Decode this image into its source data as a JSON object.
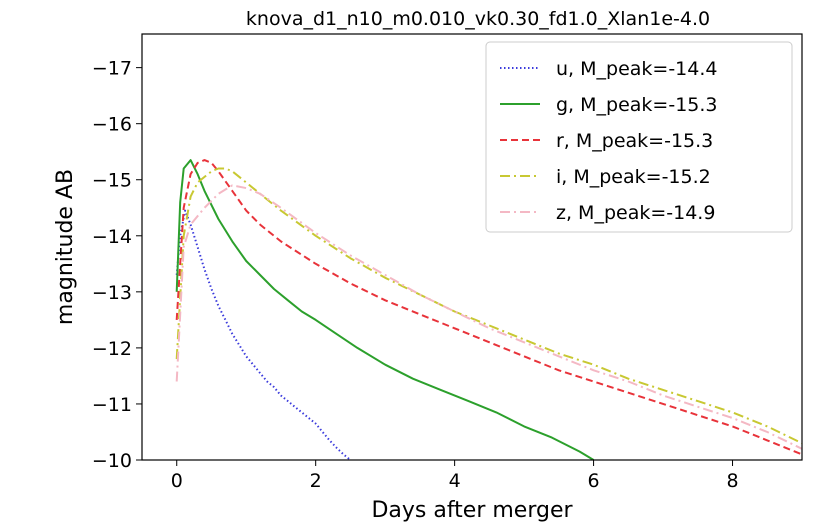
{
  "chart_data": {
    "type": "line",
    "title": "knova_d1_n10_m0.010_vk0.30_fd1.0_Xlan1e-4.0",
    "xlabel": "Days after merger",
    "ylabel": "magnitude AB",
    "xlim": [
      -0.5,
      9
    ],
    "ylim": [
      -10,
      -17.6
    ],
    "y_inverted": true,
    "x_ticks": [
      0,
      2,
      4,
      6,
      8
    ],
    "x_tick_labels": [
      "0",
      "2",
      "4",
      "6",
      "8"
    ],
    "y_ticks": [
      -17,
      -16,
      -15,
      -14,
      -13,
      -12,
      -11,
      -10
    ],
    "y_tick_labels": [
      "−17",
      "−16",
      "−15",
      "−14",
      "−13",
      "−12",
      "−11",
      "−10"
    ],
    "grid": false,
    "legend_position": "top-right",
    "series": [
      {
        "name": "u, M_peak=-14.4",
        "color": "#3b3bdc",
        "style": "dotted",
        "x": [
          0,
          0.05,
          0.12,
          0.2,
          0.3,
          0.4,
          0.5,
          0.6,
          0.7,
          0.8,
          0.9,
          1.0,
          1.1,
          1.2,
          1.3,
          1.4,
          1.5,
          1.6,
          1.7,
          1.8,
          1.9,
          2.0,
          2.1,
          2.2,
          2.3,
          2.4,
          2.5
        ],
        "y": [
          -13.3,
          -14.0,
          -14.45,
          -14.2,
          -13.8,
          -13.4,
          -13.05,
          -12.75,
          -12.5,
          -12.25,
          -12.05,
          -11.85,
          -11.7,
          -11.55,
          -11.4,
          -11.3,
          -11.15,
          -11.05,
          -10.95,
          -10.85,
          -10.75,
          -10.65,
          -10.5,
          -10.35,
          -10.22,
          -10.1,
          -10.0
        ]
      },
      {
        "name": "g, M_peak=-15.3",
        "color": "#2ca02c",
        "style": "solid",
        "x": [
          0,
          0.05,
          0.1,
          0.2,
          0.3,
          0.4,
          0.6,
          0.8,
          1.0,
          1.2,
          1.4,
          1.6,
          1.8,
          2.0,
          2.3,
          2.6,
          3.0,
          3.4,
          3.8,
          4.2,
          4.6,
          5.0,
          5.4,
          5.8,
          6.0
        ],
        "y": [
          -13.0,
          -14.6,
          -15.2,
          -15.35,
          -15.1,
          -14.8,
          -14.3,
          -13.9,
          -13.55,
          -13.3,
          -13.05,
          -12.85,
          -12.65,
          -12.5,
          -12.25,
          -12.0,
          -11.7,
          -11.45,
          -11.25,
          -11.05,
          -10.85,
          -10.6,
          -10.4,
          -10.15,
          -10.0
        ]
      },
      {
        "name": "r, M_peak=-15.3",
        "color": "#e8333a",
        "style": "dashed",
        "x": [
          0,
          0.1,
          0.2,
          0.3,
          0.4,
          0.5,
          0.6,
          0.8,
          1.0,
          1.2,
          1.5,
          2.0,
          2.5,
          3.0,
          3.5,
          4.0,
          4.5,
          5.0,
          5.5,
          6.0,
          6.5,
          7.0,
          7.5,
          8.0,
          8.5,
          9.0
        ],
        "y": [
          -12.5,
          -14.5,
          -15.1,
          -15.3,
          -15.35,
          -15.3,
          -15.15,
          -14.8,
          -14.45,
          -14.2,
          -13.9,
          -13.5,
          -13.15,
          -12.85,
          -12.6,
          -12.35,
          -12.1,
          -11.85,
          -11.6,
          -11.4,
          -11.2,
          -11.0,
          -10.8,
          -10.6,
          -10.35,
          -10.1
        ]
      },
      {
        "name": "i, M_peak=-15.2",
        "color": "#c8c832",
        "style": "dashdot",
        "x": [
          0,
          0.1,
          0.2,
          0.3,
          0.4,
          0.5,
          0.6,
          0.7,
          0.8,
          1.0,
          1.2,
          1.5,
          2.0,
          2.5,
          3.0,
          3.5,
          4.0,
          4.5,
          5.0,
          5.5,
          6.0,
          6.5,
          7.0,
          7.5,
          8.0,
          8.5,
          9.0
        ],
        "y": [
          -11.8,
          -14.0,
          -14.7,
          -14.95,
          -15.05,
          -15.15,
          -15.2,
          -15.2,
          -15.15,
          -14.95,
          -14.75,
          -14.45,
          -14.0,
          -13.6,
          -13.25,
          -12.95,
          -12.65,
          -12.4,
          -12.15,
          -11.9,
          -11.7,
          -11.45,
          -11.25,
          -11.05,
          -10.85,
          -10.6,
          -10.3
        ]
      },
      {
        "name": "z, M_peak=-14.9",
        "color": "#f4b8c4",
        "style": "dashdot",
        "x": [
          0,
          0.1,
          0.2,
          0.4,
          0.6,
          0.8,
          1.0,
          1.2,
          1.5,
          2.0,
          2.5,
          3.0,
          3.5,
          4.0,
          4.5,
          5.0,
          5.5,
          6.0,
          6.5,
          7.0,
          7.5,
          8.0,
          8.5,
          9.0
        ],
        "y": [
          -11.4,
          -13.8,
          -14.2,
          -14.5,
          -14.75,
          -14.9,
          -14.85,
          -14.75,
          -14.5,
          -14.05,
          -13.65,
          -13.3,
          -12.95,
          -12.65,
          -12.35,
          -12.1,
          -11.85,
          -11.6,
          -11.4,
          -11.15,
          -10.95,
          -10.75,
          -10.5,
          -10.2
        ]
      }
    ]
  }
}
